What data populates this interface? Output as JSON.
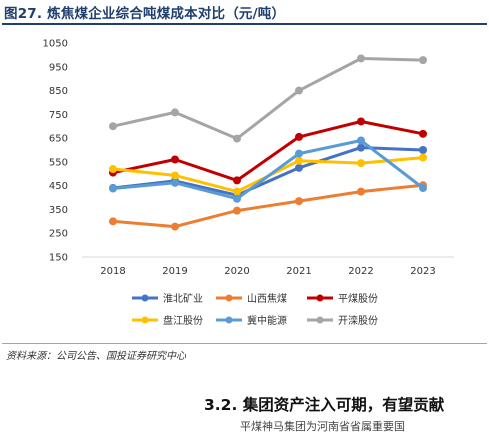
{
  "figure_title": "图27. 炼焦煤企业综合吨煤成本对比（元/吨）",
  "source_note": "资料来源：公司公告、国投证券研究中心",
  "section_heading": "3.2. 集团资产注入可期，有望贡献",
  "cut_off_text": "平煤神马集团为河南省省属重要国",
  "chart_data": {
    "type": "line",
    "title": "",
    "xlabel": "",
    "ylabel": "",
    "x": [
      "2018",
      "2019",
      "2020",
      "2021",
      "2022",
      "2023"
    ],
    "ylim": [
      150,
      1050
    ],
    "yticks": [
      150,
      250,
      350,
      450,
      550,
      650,
      750,
      850,
      950,
      1050
    ],
    "grid": false,
    "legend_position": "bottom",
    "series": [
      {
        "name": "淮北矿业",
        "color": "#4472c4",
        "values": [
          440,
          470,
          410,
          525,
          610,
          600
        ]
      },
      {
        "name": "山西焦煤",
        "color": "#ed7d31",
        "values": [
          300,
          278,
          345,
          385,
          425,
          452
        ]
      },
      {
        "name": "平煤股份",
        "color": "#c00000",
        "values": [
          505,
          560,
          472,
          655,
          720,
          668
        ]
      },
      {
        "name": "盘江股份",
        "color": "#ffc000",
        "values": [
          520,
          493,
          425,
          555,
          545,
          568
        ]
      },
      {
        "name": "冀中能源",
        "color": "#5b9bd5",
        "values": [
          438,
          462,
          395,
          585,
          640,
          440
        ]
      },
      {
        "name": "开滦股份",
        "color": "#a5a5a5",
        "values": [
          700,
          758,
          648,
          850,
          985,
          978
        ]
      }
    ]
  }
}
